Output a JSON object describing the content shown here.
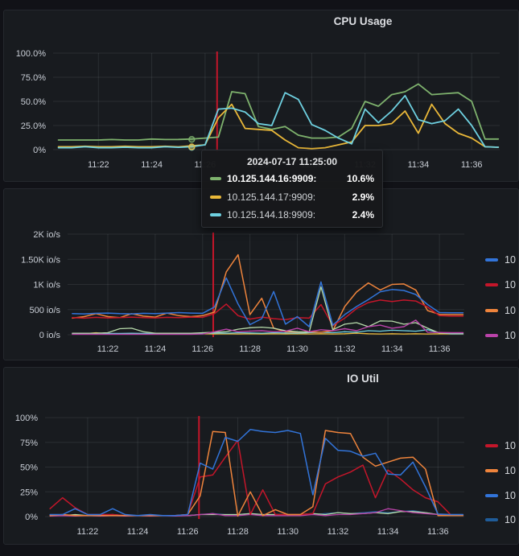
{
  "page": {
    "background": "#111217",
    "panel_background": "#181b1f",
    "grid_color": "rgba(204,212,222,0.10)",
    "tick_color": "#c9ced6",
    "annotation_color": "#c4162a"
  },
  "tooltip": {
    "title": "2024-07-17 11:25:00",
    "rows": [
      {
        "label": "10.125.144.16:9909:",
        "value": "10.6%",
        "color": "#7EB26D",
        "bold": true
      },
      {
        "label": "10.125.144.17:9909:",
        "value": "2.9%",
        "color": "#EAB839",
        "bold": false
      },
      {
        "label": "10.125.144.18:9909:",
        "value": "2.4%",
        "color": "#6ED0E0",
        "bold": false
      }
    ]
  },
  "chart_data": [
    {
      "id": "cpu",
      "type": "line",
      "title": "CPU Usage",
      "x_range": [
        20.3,
        37.05
      ],
      "y_range": [
        0,
        100
      ],
      "x_ticks": [
        {
          "v": 22,
          "label": "11:22"
        },
        {
          "v": 24,
          "label": "11:24"
        },
        {
          "v": 26,
          "label": "11:26"
        },
        {
          "v": 28,
          "label": "11:28"
        },
        {
          "v": 30,
          "label": "11:30"
        },
        {
          "v": 32,
          "label": "11:32"
        },
        {
          "v": 34,
          "label": "11:34"
        },
        {
          "v": 36,
          "label": "11:36"
        }
      ],
      "y_ticks": [
        {
          "v": 100,
          "label": "100.0%"
        },
        {
          "v": 75,
          "label": "75.0%"
        },
        {
          "v": 50,
          "label": "50.0%"
        },
        {
          "v": 25,
          "label": "25.0%"
        },
        {
          "v": 0,
          "label": "0%"
        }
      ],
      "annotation_x": 26.45,
      "hover_markers": [
        {
          "x": 25.5,
          "y": 10.6,
          "color": "#7EB26D"
        },
        {
          "x": 25.5,
          "y": 2.4,
          "color": "#6ED0E0"
        },
        {
          "x": 25.5,
          "y": 2.9,
          "color": "#EAB839"
        }
      ],
      "x": [
        20.5,
        21,
        21.5,
        22,
        22.5,
        23,
        23.5,
        24,
        24.5,
        25,
        25.5,
        26,
        26.5,
        27,
        27.5,
        28,
        28.5,
        29,
        29.5,
        30,
        30.5,
        31,
        31.5,
        32,
        32.5,
        33,
        33.5,
        34,
        34.5,
        35,
        35.5,
        36,
        36.5,
        37
      ],
      "series": [
        {
          "key": "green",
          "name": "10.125.144.16:9909",
          "color": "#7EB26D",
          "width": 1.8,
          "values": [
            10,
            10,
            10,
            10,
            10.5,
            10,
            10,
            11,
            10.5,
            10.6,
            11,
            12,
            13,
            60,
            58,
            24,
            21,
            24,
            15,
            12,
            12,
            13,
            22,
            50,
            45,
            57,
            60,
            68,
            57,
            58,
            59,
            50,
            11,
            11
          ]
        },
        {
          "key": "yellow",
          "name": "10.125.144.17:9909",
          "color": "#EAB839",
          "width": 1.8,
          "values": [
            3,
            3,
            3.5,
            3,
            3,
            3.5,
            3,
            3,
            3.5,
            2.9,
            4,
            5,
            33,
            47,
            22,
            21,
            20,
            10,
            2,
            1,
            2,
            5,
            8,
            25,
            25,
            27,
            40,
            17,
            47,
            27,
            17,
            12,
            3,
            2.5
          ]
        },
        {
          "key": "cyan",
          "name": "10.125.144.18:9909",
          "color": "#6ED0E0",
          "width": 1.8,
          "values": [
            2,
            2,
            3,
            2,
            2,
            2.5,
            2,
            2,
            3,
            2.4,
            3,
            5,
            42,
            43,
            39,
            27,
            25,
            59,
            52,
            26,
            20,
            12,
            6,
            42,
            28,
            40,
            56,
            31,
            27,
            30,
            42,
            25,
            3,
            2.5
          ]
        }
      ],
      "legend": []
    },
    {
      "id": "io",
      "type": "line",
      "title": "",
      "x_range": [
        20.3,
        37.05
      ],
      "y_range": [
        0,
        2000
      ],
      "x_ticks": [
        {
          "v": 22,
          "label": "11:22"
        },
        {
          "v": 24,
          "label": "11:24"
        },
        {
          "v": 26,
          "label": "11:26"
        },
        {
          "v": 28,
          "label": "11:28"
        },
        {
          "v": 30,
          "label": "11:30"
        },
        {
          "v": 32,
          "label": "11:32"
        },
        {
          "v": 34,
          "label": "11:34"
        },
        {
          "v": 36,
          "label": "11:36"
        }
      ],
      "y_ticks": [
        {
          "v": 2000,
          "label": "2K io/s"
        },
        {
          "v": 1500,
          "label": "1.50K io/s"
        },
        {
          "v": 1000,
          "label": "1K io/s"
        },
        {
          "v": 500,
          "label": "500 io/s"
        },
        {
          "v": 0,
          "label": "0 io/s"
        }
      ],
      "annotation_x": 26.45,
      "hover_markers": [],
      "x": [
        20.5,
        21,
        21.5,
        22,
        22.5,
        23,
        23.5,
        24,
        24.5,
        25,
        25.5,
        26,
        26.5,
        27,
        27.5,
        28,
        28.5,
        29,
        29.5,
        30,
        30.5,
        31,
        31.5,
        32,
        32.5,
        33,
        33.5,
        34,
        34.5,
        35,
        35.5,
        36,
        36.5,
        37
      ],
      "series": [
        {
          "key": "yellow",
          "name": "10",
          "color": "#EAB839",
          "width": 1.3,
          "values": [
            15,
            20,
            40,
            20,
            15,
            20,
            15,
            20,
            15,
            20,
            30,
            20,
            15,
            20,
            15,
            20,
            15,
            20,
            15,
            20,
            15,
            20,
            15,
            20,
            30,
            20,
            15,
            20,
            15,
            20,
            15,
            20,
            15,
            15
          ]
        },
        {
          "key": "lightblue",
          "name": "10",
          "color": "#6ED0E0",
          "width": 1.3,
          "values": [
            25,
            25,
            30,
            25,
            25,
            30,
            25,
            25,
            30,
            25,
            25,
            30,
            35,
            30,
            40,
            35,
            30,
            40,
            35,
            30,
            40,
            50,
            40,
            60,
            50,
            80,
            70,
            90,
            80,
            70,
            100,
            40,
            20,
            20
          ]
        },
        {
          "key": "orange",
          "name": "10",
          "color": "#EF843C",
          "width": 1.5,
          "values": [
            330,
            360,
            420,
            360,
            340,
            420,
            370,
            350,
            430,
            380,
            360,
            380,
            450,
            1250,
            1590,
            400,
            725,
            130,
            60,
            50,
            60,
            50,
            80,
            560,
            850,
            1030,
            890,
            1000,
            1010,
            890,
            480,
            405,
            400,
            400
          ]
        },
        {
          "key": "red",
          "name": "10",
          "color": "#C4162A",
          "width": 1.5,
          "values": [
            340,
            330,
            345,
            335,
            340,
            350,
            340,
            335,
            345,
            340,
            350,
            345,
            420,
            610,
            380,
            310,
            350,
            320,
            300,
            340,
            330,
            600,
            180,
            330,
            520,
            640,
            690,
            660,
            690,
            670,
            550,
            380,
            370,
            370
          ]
        },
        {
          "key": "blue",
          "name": "10",
          "color": "#3274D9",
          "width": 1.5,
          "values": [
            420,
            415,
            425,
            430,
            420,
            415,
            425,
            420,
            430,
            440,
            430,
            425,
            550,
            1130,
            610,
            200,
            320,
            860,
            210,
            360,
            160,
            1050,
            190,
            400,
            560,
            700,
            855,
            900,
            880,
            800,
            600,
            440,
            435,
            435
          ]
        },
        {
          "key": "palegreen",
          "name": "10",
          "color": "#B7DBAB",
          "width": 1.3,
          "values": [
            30,
            30,
            30,
            40,
            120,
            130,
            60,
            30,
            30,
            30,
            30,
            40,
            50,
            60,
            110,
            140,
            150,
            130,
            80,
            60,
            50,
            950,
            100,
            210,
            240,
            160,
            275,
            270,
            210,
            240,
            130,
            32,
            30,
            30
          ]
        },
        {
          "key": "magenta",
          "name": "10",
          "color": "#BA43A9",
          "width": 1.4,
          "values": [
            10,
            10,
            10,
            10,
            10,
            10,
            10,
            10,
            10,
            10,
            10,
            15,
            60,
            110,
            60,
            70,
            80,
            60,
            70,
            130,
            60,
            100,
            80,
            120,
            80,
            160,
            190,
            130,
            160,
            290,
            50,
            45,
            40,
            40
          ]
        }
      ],
      "legend": [
        {
          "label": "10",
          "color": "#3274D9"
        },
        {
          "label": "10",
          "color": "#C4162A"
        },
        {
          "label": "10",
          "color": "#EF843C"
        },
        {
          "label": "10",
          "color": "#BA43A9"
        }
      ]
    },
    {
      "id": "util",
      "type": "line",
      "title": "IO Util",
      "x_range": [
        20.3,
        37.05
      ],
      "y_range": [
        0,
        100
      ],
      "x_ticks": [
        {
          "v": 22,
          "label": "11:22"
        },
        {
          "v": 24,
          "label": "11:24"
        },
        {
          "v": 26,
          "label": "11:26"
        },
        {
          "v": 28,
          "label": "11:28"
        },
        {
          "v": 30,
          "label": "11:30"
        },
        {
          "v": 32,
          "label": "11:32"
        },
        {
          "v": 34,
          "label": "11:34"
        },
        {
          "v": 36,
          "label": "11:36"
        }
      ],
      "y_ticks": [
        {
          "v": 100,
          "label": "100%"
        },
        {
          "v": 75,
          "label": "75%"
        },
        {
          "v": 50,
          "label": "50%"
        },
        {
          "v": 25,
          "label": "25%"
        },
        {
          "v": 0,
          "label": "0%"
        }
      ],
      "annotation_x": 26.45,
      "hover_markers": [],
      "x": [
        20.5,
        21,
        21.5,
        22,
        22.5,
        23,
        23.5,
        24,
        24.5,
        25,
        25.5,
        26,
        26.5,
        27,
        27.5,
        28,
        28.5,
        29,
        29.5,
        30,
        30.5,
        31,
        31.5,
        32,
        32.5,
        33,
        33.5,
        34,
        34.5,
        35,
        35.5,
        36,
        36.5,
        37
      ],
      "series": [
        {
          "key": "steel",
          "name": "10",
          "color": "#1F5C99",
          "width": 1.3,
          "values": [
            1,
            1,
            1,
            1,
            1,
            1,
            1,
            1,
            1,
            1,
            1,
            1,
            2,
            3,
            2,
            2,
            3,
            2,
            2,
            2,
            2,
            2,
            3,
            4,
            3,
            4,
            5,
            4,
            5,
            6,
            4,
            2,
            2,
            2
          ]
        },
        {
          "key": "green",
          "name": "10",
          "color": "#B7DBAB",
          "width": 1.3,
          "values": [
            1,
            1,
            2,
            1,
            1,
            2,
            1,
            1,
            1,
            1,
            1,
            1,
            2,
            2,
            2,
            2,
            3,
            2,
            2,
            2,
            2,
            3,
            2,
            4,
            3,
            3,
            4,
            3,
            5,
            5,
            4,
            2,
            1,
            1
          ]
        },
        {
          "key": "magenta",
          "name": "10",
          "color": "#BA43A9",
          "width": 1.3,
          "values": [
            0.5,
            1,
            0.5,
            1,
            0.5,
            1,
            0.5,
            1,
            0.5,
            1,
            0.5,
            1,
            2,
            3,
            1,
            1,
            2,
            1,
            1,
            1,
            1,
            2,
            1,
            2,
            2,
            3,
            4,
            8,
            6,
            4,
            3,
            2,
            1,
            1
          ]
        },
        {
          "key": "red",
          "name": "10",
          "color": "#C4162A",
          "width": 1.5,
          "values": [
            8,
            19,
            9,
            2,
            2,
            2,
            1,
            1,
            1,
            1,
            1,
            2,
            40,
            42,
            60,
            77,
            2,
            27,
            2,
            2,
            2,
            3,
            33,
            40,
            45,
            52,
            19,
            47,
            38,
            27,
            19,
            15,
            2,
            1
          ]
        },
        {
          "key": "orange",
          "name": "10",
          "color": "#EF843C",
          "width": 1.5,
          "values": [
            1,
            2,
            1,
            1,
            1,
            1,
            1,
            1,
            1,
            1,
            1,
            2,
            21,
            86,
            85,
            0.5,
            25,
            1,
            7,
            2,
            2,
            10,
            87,
            85,
            84,
            60,
            51,
            55,
            59,
            60,
            48,
            1,
            1,
            1
          ]
        },
        {
          "key": "blue",
          "name": "10",
          "color": "#3274D9",
          "width": 1.5,
          "values": [
            2,
            2,
            8,
            2,
            2,
            8,
            2,
            1,
            2,
            1,
            1,
            2,
            54,
            48,
            80,
            76,
            88,
            86,
            85,
            87,
            84,
            22,
            79,
            67,
            66,
            61,
            64,
            43,
            42,
            55,
            30,
            2.5,
            2,
            2
          ]
        }
      ],
      "legend": [
        {
          "label": "10",
          "color": "#C4162A"
        },
        {
          "label": "10",
          "color": "#EF843C"
        },
        {
          "label": "10",
          "color": "#3274D9"
        },
        {
          "label": "10",
          "color": "#1F5C99"
        }
      ]
    }
  ]
}
